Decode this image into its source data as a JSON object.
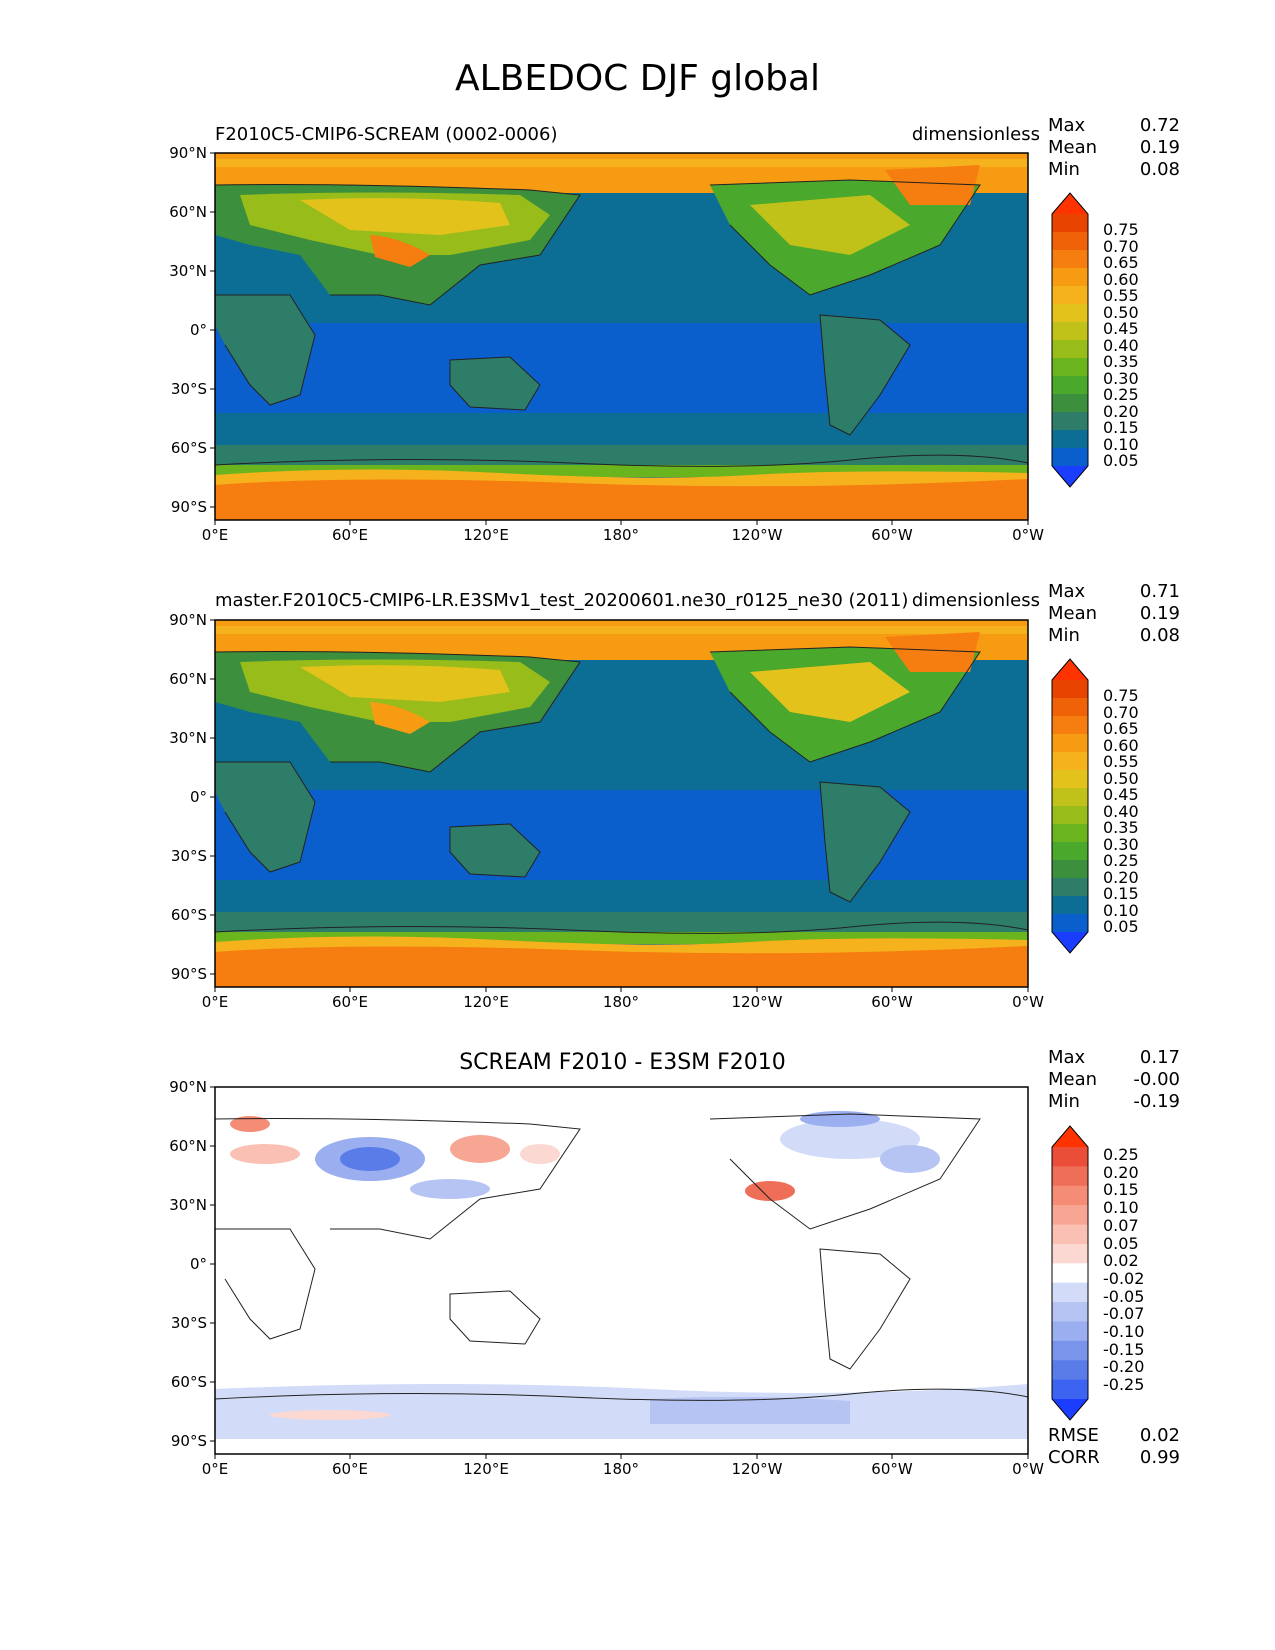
{
  "figure_title": "ALBEDOC DJF global",
  "units": "dimensionless",
  "lat_ticks": [
    "90°N",
    "60°N",
    "30°N",
    "0°",
    "30°S",
    "60°S",
    "90°S"
  ],
  "lon_ticks": [
    "0°E",
    "60°E",
    "120°E",
    "180°",
    "120°W",
    "60°W",
    "0°W"
  ],
  "stat_labels": {
    "max": "Max",
    "mean": "Mean",
    "min": "Min",
    "rmse": "RMSE",
    "corr": "CORR"
  },
  "colors": {
    "main_levels": [
      "#1a3dff",
      "#0a5fcc",
      "#0c6e94",
      "#2e7d68",
      "#3c8f3c",
      "#4aa82c",
      "#6ab41e",
      "#98bc1a",
      "#c0c21a",
      "#e4c21c",
      "#f5b21c",
      "#f79c12",
      "#f67d10",
      "#f06208",
      "#e84400",
      "#ff3300"
    ],
    "diff_levels": [
      "#1a3dff",
      "#3d64f0",
      "#5a7ce8",
      "#7a94ec",
      "#9aaef0",
      "#b6c4f4",
      "#d2dcf8",
      "#ffffff",
      "#fbd8d2",
      "#fac0b4",
      "#f7a694",
      "#f48c76",
      "#ef6e58",
      "#ea4e38",
      "#ff3300"
    ]
  },
  "panels": [
    {
      "title": "F2010C5-CMIP6-SCREAM (0002-0006)",
      "units": "dimensionless",
      "max": "0.72",
      "mean": "0.19",
      "min": "0.08",
      "colorbar_ticks": [
        "0.75",
        "0.70",
        "0.65",
        "0.60",
        "0.55",
        "0.50",
        "0.45",
        "0.40",
        "0.35",
        "0.30",
        "0.25",
        "0.20",
        "0.15",
        "0.10",
        "0.05"
      ]
    },
    {
      "title": "master.F2010C5-CMIP6-LR.E3SMv1_test_20200601.ne30_r0125_ne30 (2011)",
      "units": "dimensionless",
      "max": "0.71",
      "mean": "0.19",
      "min": "0.08",
      "colorbar_ticks": [
        "0.75",
        "0.70",
        "0.65",
        "0.60",
        "0.55",
        "0.50",
        "0.45",
        "0.40",
        "0.35",
        "0.30",
        "0.25",
        "0.20",
        "0.15",
        "0.10",
        "0.05"
      ]
    },
    {
      "title": "SCREAM F2010 - E3SM F2010",
      "max": "0.17",
      "mean": "-0.00",
      "min": "-0.19",
      "rmse": "0.02",
      "corr": "0.99",
      "colorbar_ticks": [
        "0.25",
        "0.20",
        "0.15",
        "0.10",
        "0.07",
        "0.05",
        "0.02",
        "-0.02",
        "-0.05",
        "-0.07",
        "-0.10",
        "-0.15",
        "-0.20",
        "-0.25"
      ]
    }
  ]
}
